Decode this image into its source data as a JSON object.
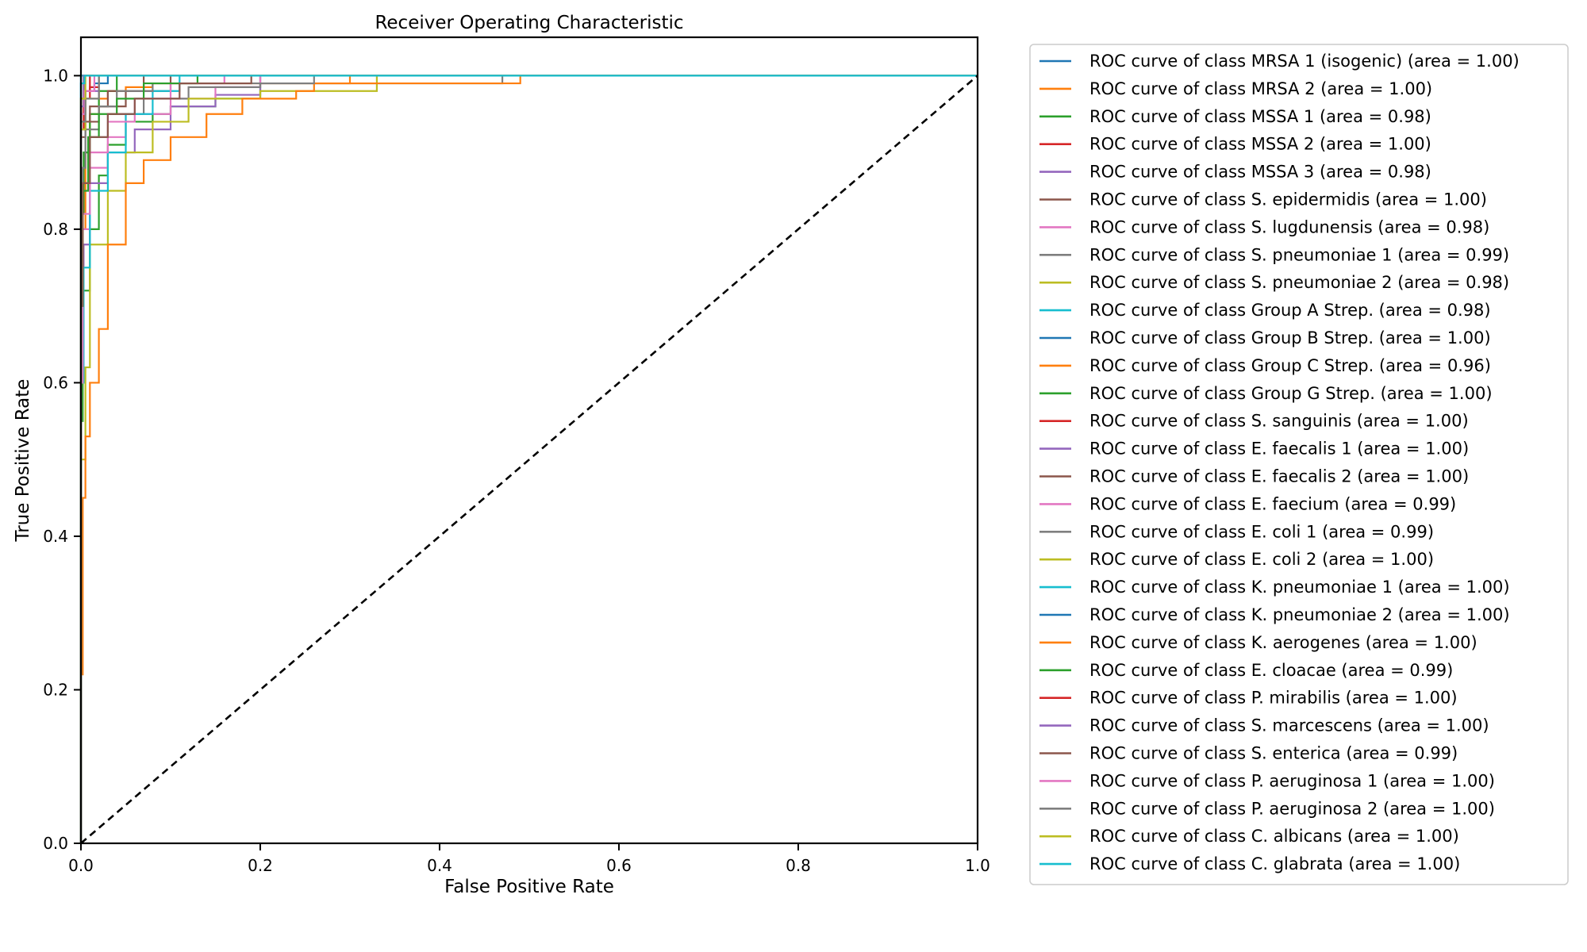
{
  "chart_data": {
    "type": "line",
    "title": "Receiver Operating Characteristic",
    "xlabel": "False Positive Rate",
    "ylabel": "True Positive Rate",
    "xlim": [
      0.0,
      1.0
    ],
    "ylim": [
      0.0,
      1.05
    ],
    "xticks": [
      "0.0",
      "0.2",
      "0.4",
      "0.6",
      "0.8",
      "1.0"
    ],
    "yticks": [
      "0.0",
      "0.2",
      "0.4",
      "0.6",
      "0.8",
      "1.0"
    ],
    "grid": false,
    "legend_position": "outside-right",
    "diagonal": {
      "x": [
        0,
        1
      ],
      "y": [
        0,
        1
      ],
      "color": "#000000",
      "style": "dashed"
    },
    "series": [
      {
        "name": "ROC curve of class MRSA 1 (isogenic) (area = 1.00)",
        "color": "#1f77b4",
        "x": [
          0,
          0,
          0.002,
          1
        ],
        "y": [
          0,
          0.96,
          1.0,
          1.0
        ]
      },
      {
        "name": "ROC curve of class MRSA 2 (area = 1.00)",
        "color": "#ff7f0e",
        "x": [
          0,
          0,
          0.005,
          0.01,
          0.02,
          0.03,
          0.05,
          0.08,
          0.15,
          0.3,
          0.5,
          1
        ],
        "y": [
          0,
          0.5,
          0.8,
          0.9,
          0.95,
          0.97,
          0.98,
          0.985,
          0.99,
          0.99,
          1.0,
          1.0
        ]
      },
      {
        "name": "ROC curve of class MSSA 1 (area = 0.98)",
        "color": "#2ca02c",
        "x": [
          0,
          0.002,
          0.01,
          0.02,
          0.03,
          0.05,
          0.08,
          0.1,
          0.15,
          0.2,
          1
        ],
        "y": [
          0,
          0.55,
          0.72,
          0.8,
          0.87,
          0.91,
          0.94,
          0.95,
          0.96,
          0.97,
          1.0
        ]
      },
      {
        "name": "ROC curve of class MSSA 2 (area = 1.00)",
        "color": "#d62728",
        "x": [
          0,
          0,
          0.003,
          0.01,
          0.02,
          0.03,
          1
        ],
        "y": [
          0,
          0.86,
          0.93,
          0.97,
          0.985,
          1.0,
          1.0
        ]
      },
      {
        "name": "ROC curve of class MSSA 3 (area = 0.98)",
        "color": "#9467bd",
        "x": [
          0,
          0.003,
          0.01,
          0.03,
          0.06,
          0.1,
          0.15,
          0.2,
          1
        ],
        "y": [
          0,
          0.62,
          0.78,
          0.86,
          0.9,
          0.93,
          0.96,
          0.975,
          1.0
        ]
      },
      {
        "name": "ROC curve of class S. epidermidis (area = 1.00)",
        "color": "#8c564b",
        "x": [
          0,
          0,
          0.005,
          0.02,
          0.05,
          0.1,
          0.2,
          1
        ],
        "y": [
          0,
          0.85,
          0.92,
          0.94,
          0.96,
          0.98,
          1.0,
          1.0
        ]
      },
      {
        "name": "ROC curve of class S. lugdunensis (area = 0.98)",
        "color": "#e377c2",
        "x": [
          0,
          0.002,
          0.01,
          0.03,
          0.05,
          0.1,
          0.15,
          0.2,
          1
        ],
        "y": [
          0,
          0.62,
          0.8,
          0.88,
          0.92,
          0.95,
          0.97,
          0.985,
          1.0
        ]
      },
      {
        "name": "ROC curve of class S. pneumoniae 1 (area = 0.99)",
        "color": "#7f7f7f",
        "x": [
          0,
          0.002,
          0.01,
          0.03,
          0.07,
          0.12,
          0.2,
          0.47,
          1
        ],
        "y": [
          0,
          0.72,
          0.86,
          0.92,
          0.95,
          0.97,
          0.985,
          0.99,
          1.0
        ]
      },
      {
        "name": "ROC curve of class S. pneumoniae 2 (area = 0.98)",
        "color": "#bcbd22",
        "x": [
          0,
          0.005,
          0.01,
          0.03,
          0.05,
          0.08,
          0.12,
          0.2,
          0.33,
          1
        ],
        "y": [
          0,
          0.5,
          0.62,
          0.78,
          0.85,
          0.9,
          0.94,
          0.97,
          0.98,
          1.0
        ]
      },
      {
        "name": "ROC curve of class Group A Strep. (area = 0.98)",
        "color": "#17becf",
        "x": [
          0,
          0.003,
          0.01,
          0.03,
          0.05,
          0.08,
          0.11,
          1
        ],
        "y": [
          0,
          0.6,
          0.75,
          0.85,
          0.9,
          0.95,
          0.98,
          1.0
        ]
      },
      {
        "name": "ROC curve of class Group B Strep. (area = 1.00)",
        "color": "#1f77b4",
        "x": [
          0,
          0,
          0.005,
          0.015,
          0.03,
          0.42,
          1
        ],
        "y": [
          0,
          0.9,
          0.95,
          0.98,
          0.99,
          1.0,
          1.0
        ]
      },
      {
        "name": "ROC curve of class Group C Strep. (area = 0.96)",
        "color": "#ff7f0e",
        "x": [
          0,
          0.002,
          0.005,
          0.01,
          0.02,
          0.03,
          0.05,
          0.07,
          0.1,
          0.14,
          0.18,
          0.24,
          0.26,
          0.49,
          1
        ],
        "y": [
          0,
          0.22,
          0.45,
          0.53,
          0.6,
          0.67,
          0.78,
          0.86,
          0.89,
          0.92,
          0.95,
          0.97,
          0.98,
          0.99,
          1.0
        ]
      },
      {
        "name": "ROC curve of class Group G Strep. (area = 1.00)",
        "color": "#2ca02c",
        "x": [
          0,
          0,
          0.003,
          0.01,
          0.02,
          0.04,
          0.07,
          1
        ],
        "y": [
          0,
          0.5,
          0.82,
          0.9,
          0.95,
          0.98,
          1.0,
          1.0
        ]
      },
      {
        "name": "ROC curve of class S. sanguinis (area = 1.00)",
        "color": "#d62728",
        "x": [
          0,
          0,
          0.003,
          0.01,
          0.02,
          1
        ],
        "y": [
          0,
          0.9,
          0.95,
          0.98,
          1.0,
          1.0
        ]
      },
      {
        "name": "ROC curve of class E. faecalis 1 (area = 1.00)",
        "color": "#9467bd",
        "x": [
          0,
          0,
          0.005,
          0.02,
          0.04,
          1
        ],
        "y": [
          0,
          0.85,
          0.95,
          0.98,
          1.0,
          1.0
        ]
      },
      {
        "name": "ROC curve of class E. faecalis 2 (area = 1.00)",
        "color": "#8c564b",
        "x": [
          0,
          0,
          0.01,
          0.03,
          0.07,
          0.14,
          1
        ],
        "y": [
          0,
          0.88,
          0.94,
          0.96,
          0.98,
          1.0,
          1.0
        ]
      },
      {
        "name": "ROC curve of class E. faecium (area = 0.99)",
        "color": "#e377c2",
        "x": [
          0,
          0.002,
          0.01,
          0.03,
          0.06,
          0.1,
          0.16,
          1
        ],
        "y": [
          0,
          0.6,
          0.82,
          0.9,
          0.94,
          0.97,
          0.99,
          1.0
        ]
      },
      {
        "name": "ROC curve of class E. coli 1 (area = 0.99)",
        "color": "#7f7f7f",
        "x": [
          0,
          0.002,
          0.005,
          0.02,
          0.04,
          0.08,
          0.26,
          1
        ],
        "y": [
          0,
          0.75,
          0.88,
          0.93,
          0.96,
          0.98,
          0.99,
          1.0
        ]
      },
      {
        "name": "ROC curve of class E. coli 2 (area = 1.00)",
        "color": "#bcbd22",
        "x": [
          0,
          0,
          0.005,
          0.02,
          0.06,
          1
        ],
        "y": [
          0,
          0.85,
          0.93,
          0.97,
          1.0,
          1.0
        ]
      },
      {
        "name": "ROC curve of class K. pneumoniae 1 (area = 1.00)",
        "color": "#17becf",
        "x": [
          0,
          0,
          0.005,
          1
        ],
        "y": [
          0,
          0.95,
          1.0,
          1.0
        ]
      },
      {
        "name": "ROC curve of class K. pneumoniae 2 (area = 1.00)",
        "color": "#1f77b4",
        "x": [
          0,
          0,
          0.004,
          0.36,
          1
        ],
        "y": [
          0,
          0.93,
          0.99,
          1.0,
          1.0
        ]
      },
      {
        "name": "ROC curve of class K. aerogenes (area = 1.00)",
        "color": "#ff7f0e",
        "x": [
          0,
          0,
          0.004,
          0.02,
          1
        ],
        "y": [
          0,
          0.9,
          0.97,
          1.0,
          1.0
        ]
      },
      {
        "name": "ROC curve of class E. cloacae (area = 0.99)",
        "color": "#2ca02c",
        "x": [
          0,
          0.002,
          0.008,
          0.02,
          0.04,
          0.07,
          0.13,
          1
        ],
        "y": [
          0,
          0.7,
          0.85,
          0.92,
          0.95,
          0.97,
          0.99,
          1.0
        ]
      },
      {
        "name": "ROC curve of class P. mirabilis (area = 1.00)",
        "color": "#d62728",
        "x": [
          0,
          0,
          0.003,
          0.015,
          1
        ],
        "y": [
          0,
          0.93,
          0.97,
          1.0,
          1.0
        ]
      },
      {
        "name": "ROC curve of class S. marcescens (area = 1.00)",
        "color": "#9467bd",
        "x": [
          0,
          0,
          0.003,
          0.015,
          1
        ],
        "y": [
          0,
          0.9,
          0.96,
          1.0,
          1.0
        ]
      },
      {
        "name": "ROC curve of class S. enterica (area = 0.99)",
        "color": "#8c564b",
        "x": [
          0,
          0.002,
          0.01,
          0.03,
          0.06,
          0.11,
          0.19,
          1
        ],
        "y": [
          0,
          0.7,
          0.86,
          0.92,
          0.95,
          0.97,
          0.99,
          1.0
        ]
      },
      {
        "name": "ROC curve of class P. aeruginosa 1 (area = 1.00)",
        "color": "#e377c2",
        "x": [
          0,
          0,
          0.004,
          0.015,
          0.04,
          1
        ],
        "y": [
          0,
          0.88,
          0.95,
          0.98,
          1.0,
          1.0
        ]
      },
      {
        "name": "ROC curve of class P. aeruginosa 2 (area = 1.00)",
        "color": "#7f7f7f",
        "x": [
          0,
          0,
          0.005,
          0.02,
          0.05,
          1
        ],
        "y": [
          0,
          0.86,
          0.94,
          0.97,
          1.0,
          1.0
        ]
      },
      {
        "name": "ROC curve of class C. albicans (area = 1.00)",
        "color": "#bcbd22",
        "x": [
          0,
          0,
          0.005,
          0.015,
          1
        ],
        "y": [
          0,
          0.9,
          0.97,
          1.0,
          1.0
        ]
      },
      {
        "name": "ROC curve of class C. glabrata (area = 1.00)",
        "color": "#17becf",
        "x": [
          0,
          0,
          0.004,
          0.01,
          1
        ],
        "y": [
          0,
          0.93,
          0.99,
          1.0,
          1.0
        ]
      }
    ]
  }
}
